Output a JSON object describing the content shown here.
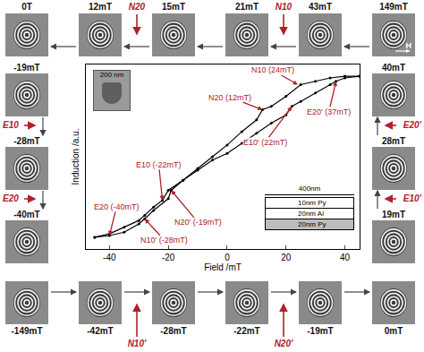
{
  "chart_data": {
    "type": "line",
    "xlabel": "Field /mT",
    "ylabel": "Induction /a.u.",
    "xlim": [
      -48,
      45
    ],
    "xticks": [
      -40,
      -20,
      0,
      20,
      40
    ],
    "ylim": [
      -0.05,
      1.05
    ],
    "tick_labels": "x",
    "grid": false,
    "series": [
      {
        "color": "#000000",
        "marker": "circle",
        "line_style": "solid",
        "x": [
          45,
          40,
          35,
          30,
          25,
          20,
          15,
          12,
          10,
          5,
          0,
          -5,
          -10,
          -15,
          -20,
          -22,
          -25,
          -28,
          -30,
          -35,
          -40,
          -45
        ],
        "values": [
          0.98,
          0.98,
          0.97,
          0.95,
          0.93,
          0.86,
          0.8,
          0.78,
          0.72,
          0.65,
          0.57,
          0.5,
          0.43,
          0.36,
          0.3,
          0.24,
          0.2,
          0.15,
          0.12,
          0.08,
          0.04,
          0.02
        ]
      },
      {
        "color": "#000000",
        "marker": "circle",
        "line_style": "solid",
        "x": [
          -45,
          -40,
          -35,
          -30,
          -28,
          -25,
          -20,
          -19,
          -15,
          -10,
          -5,
          0,
          5,
          10,
          15,
          20,
          22,
          25,
          30,
          35,
          37,
          40,
          45
        ],
        "values": [
          0.02,
          0.03,
          0.05,
          0.1,
          0.13,
          0.18,
          0.25,
          0.3,
          0.36,
          0.42,
          0.48,
          0.52,
          0.58,
          0.64,
          0.7,
          0.75,
          0.8,
          0.83,
          0.88,
          0.93,
          0.95,
          0.97,
          0.98
        ]
      }
    ],
    "annotations": [
      {
        "text": "N10 (24mT)",
        "x": 24,
        "y": 0.93
      },
      {
        "text": "N20 (12mT)",
        "x": 12,
        "y": 0.78
      },
      {
        "text": "E20' (37mT)",
        "x": 37,
        "y": 0.95
      },
      {
        "text": "E10' (22mT)",
        "x": 22,
        "y": 0.8
      },
      {
        "text": "E10 (-22mT)",
        "x": -22,
        "y": 0.24
      },
      {
        "text": "E20 (-40mT)",
        "x": -40,
        "y": 0.03
      },
      {
        "text": "N20' (-19mT)",
        "x": -19,
        "y": 0.3
      },
      {
        "text": "N10' (-28mT)",
        "x": -28,
        "y": 0.13
      }
    ],
    "inset": {
      "scale_label": "200 nm"
    },
    "stack": {
      "scale_label": "400nm",
      "layers": [
        "10nm Py",
        "20nm Al",
        "20nm Py"
      ]
    }
  },
  "panels": {
    "top": {
      "labels": [
        "0T",
        "12mT",
        "15mT",
        "21mT",
        "43mT",
        "149mT"
      ],
      "events": [
        null,
        "N20",
        null,
        "N10",
        null
      ]
    },
    "left": {
      "labels": [
        "-19mT",
        "-28mT",
        "-40mT"
      ],
      "events": [
        "E10",
        "E20"
      ]
    },
    "bottom": {
      "labels": [
        "-149mT",
        "-42mT",
        "-28mT",
        "-22mT",
        "-19mT",
        "0mT"
      ],
      "events": [
        null,
        "N10'",
        null,
        "N20'",
        null
      ]
    },
    "right": {
      "labels": [
        "40mT",
        "28mT",
        "19mT"
      ],
      "events": [
        "E20'",
        "E10'"
      ]
    },
    "field_label": "H"
  }
}
